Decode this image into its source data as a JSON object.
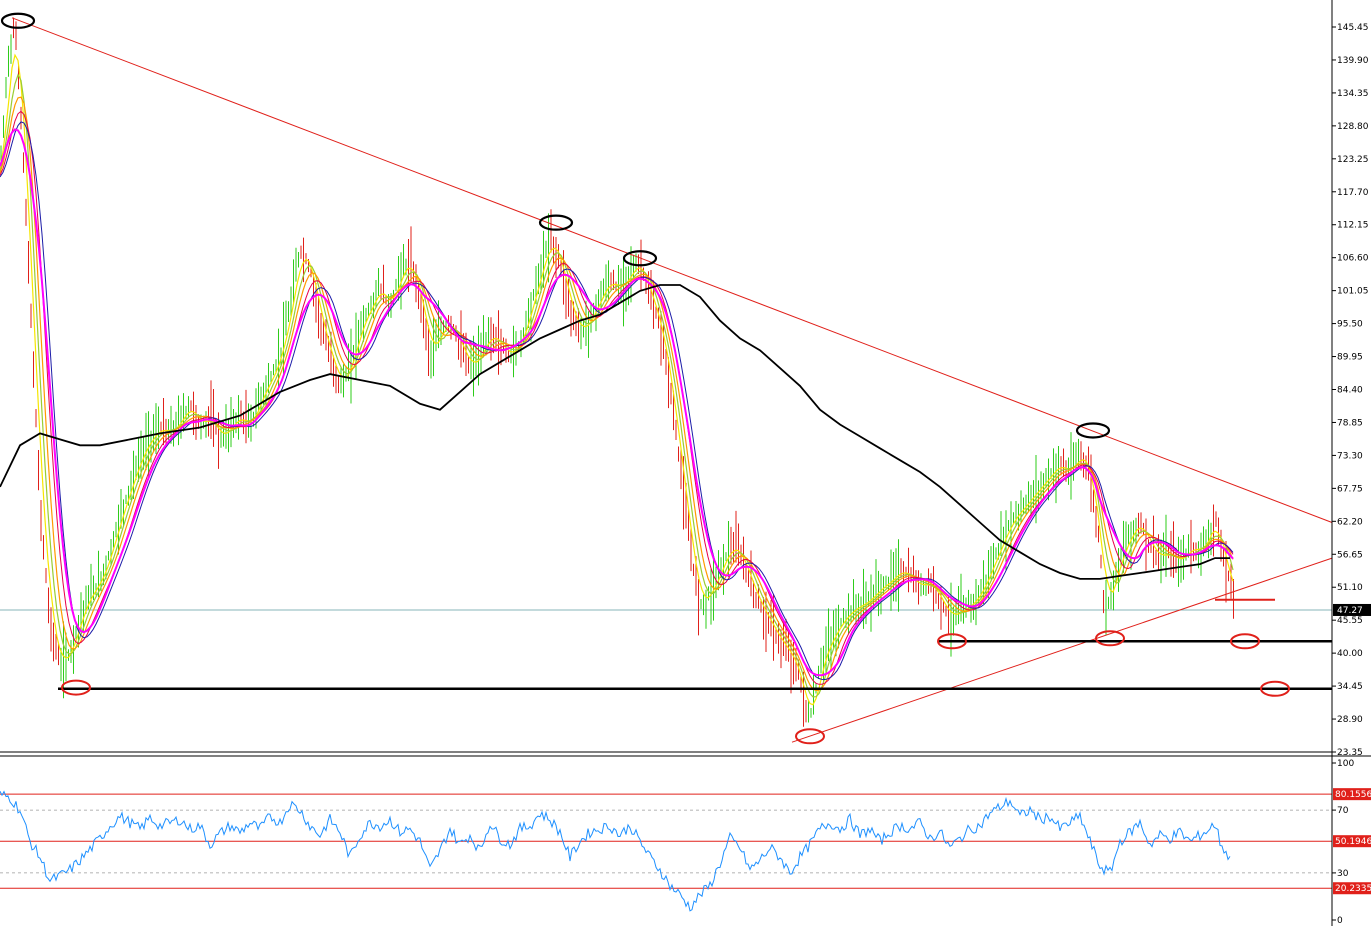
{
  "chart_data": [
    {
      "type": "candlestick",
      "panel": "price",
      "y_ticks": [
        "145.45",
        "139.90",
        "134.35",
        "128.80",
        "123.25",
        "117.70",
        "112.15",
        "106.60",
        "101.05",
        "95.50",
        "89.95",
        "84.40",
        "78.85",
        "73.30",
        "67.75",
        "62.20",
        "56.65",
        "51.10",
        "45.55",
        "40.00",
        "34.45",
        "28.90",
        "23.35"
      ],
      "ylim": [
        23.35,
        148
      ],
      "current_price": "47.27",
      "price_path": [
        [
          0,
          120
        ],
        [
          8,
          140
        ],
        [
          15,
          146
        ],
        [
          22,
          128
        ],
        [
          30,
          100
        ],
        [
          40,
          65
        ],
        [
          50,
          45
        ],
        [
          60,
          38
        ],
        [
          70,
          40
        ],
        [
          80,
          46
        ],
        [
          90,
          50
        ],
        [
          100,
          52
        ],
        [
          110,
          57
        ],
        [
          120,
          63
        ],
        [
          130,
          68
        ],
        [
          140,
          73
        ],
        [
          150,
          76
        ],
        [
          160,
          78
        ],
        [
          170,
          77
        ],
        [
          180,
          79
        ],
        [
          190,
          82
        ],
        [
          200,
          78
        ],
        [
          210,
          80
        ],
        [
          220,
          76
        ],
        [
          230,
          78
        ],
        [
          240,
          80
        ],
        [
          250,
          78
        ],
        [
          260,
          83
        ],
        [
          270,
          86
        ],
        [
          280,
          90
        ],
        [
          290,
          98
        ],
        [
          300,
          108
        ],
        [
          310,
          105
        ],
        [
          320,
          96
        ],
        [
          330,
          90
        ],
        [
          340,
          85
        ],
        [
          350,
          88
        ],
        [
          360,
          95
        ],
        [
          370,
          98
        ],
        [
          380,
          102
        ],
        [
          390,
          98
        ],
        [
          400,
          104
        ],
        [
          410,
          106
        ],
        [
          420,
          100
        ],
        [
          430,
          90
        ],
        [
          440,
          94
        ],
        [
          450,
          96
        ],
        [
          460,
          92
        ],
        [
          470,
          88
        ],
        [
          480,
          90
        ],
        [
          490,
          94
        ],
        [
          500,
          92
        ],
        [
          510,
          90
        ],
        [
          520,
          92
        ],
        [
          530,
          98
        ],
        [
          540,
          104
        ],
        [
          550,
          110
        ],
        [
          560,
          106
        ],
        [
          570,
          98
        ],
        [
          580,
          94
        ],
        [
          590,
          96
        ],
        [
          600,
          100
        ],
        [
          610,
          103
        ],
        [
          620,
          101
        ],
        [
          630,
          104
        ],
        [
          640,
          106
        ],
        [
          650,
          100
        ],
        [
          660,
          95
        ],
        [
          670,
          85
        ],
        [
          680,
          72
        ],
        [
          690,
          58
        ],
        [
          700,
          48
        ],
        [
          710,
          50
        ],
        [
          720,
          54
        ],
        [
          730,
          58
        ],
        [
          740,
          57
        ],
        [
          750,
          52
        ],
        [
          760,
          48
        ],
        [
          770,
          45
        ],
        [
          780,
          42
        ],
        [
          790,
          40
        ],
        [
          800,
          36
        ],
        [
          805,
          31
        ],
        [
          810,
          29
        ],
        [
          815,
          33
        ],
        [
          820,
          38
        ],
        [
          830,
          42
        ],
        [
          840,
          45
        ],
        [
          850,
          47
        ],
        [
          860,
          48
        ],
        [
          870,
          49
        ],
        [
          880,
          51
        ],
        [
          890,
          52
        ],
        [
          900,
          54
        ],
        [
          910,
          53
        ],
        [
          920,
          51
        ],
        [
          930,
          52
        ],
        [
          940,
          49
        ],
        [
          950,
          46
        ],
        [
          960,
          47
        ],
        [
          970,
          48
        ],
        [
          980,
          50
        ],
        [
          990,
          54
        ],
        [
          1000,
          58
        ],
        [
          1010,
          62
        ],
        [
          1020,
          64
        ],
        [
          1030,
          66
        ],
        [
          1040,
          68
        ],
        [
          1050,
          70
        ],
        [
          1060,
          72
        ],
        [
          1070,
          70
        ],
        [
          1080,
          74
        ],
        [
          1090,
          70
        ],
        [
          1100,
          58
        ],
        [
          1105,
          46
        ],
        [
          1110,
          50
        ],
        [
          1120,
          56
        ],
        [
          1130,
          60
        ],
        [
          1140,
          62
        ],
        [
          1150,
          58
        ],
        [
          1160,
          56
        ],
        [
          1170,
          57
        ],
        [
          1180,
          55
        ],
        [
          1190,
          58
        ],
        [
          1200,
          57
        ],
        [
          1210,
          60
        ],
        [
          1215,
          63
        ],
        [
          1220,
          58
        ],
        [
          1230,
          52
        ],
        [
          1235,
          49
        ]
      ],
      "ma_black_path": [
        [
          0,
          68
        ],
        [
          20,
          75
        ],
        [
          40,
          77
        ],
        [
          60,
          76
        ],
        [
          80,
          75
        ],
        [
          100,
          75
        ],
        [
          130,
          76
        ],
        [
          160,
          77
        ],
        [
          200,
          78
        ],
        [
          240,
          80
        ],
        [
          280,
          84
        ],
        [
          310,
          86
        ],
        [
          330,
          87
        ],
        [
          360,
          86
        ],
        [
          390,
          85
        ],
        [
          420,
          82
        ],
        [
          440,
          81
        ],
        [
          460,
          84
        ],
        [
          480,
          87
        ],
        [
          500,
          89
        ],
        [
          520,
          91
        ],
        [
          540,
          93
        ],
        [
          560,
          94.5
        ],
        [
          580,
          96
        ],
        [
          600,
          97
        ],
        [
          620,
          99
        ],
        [
          640,
          101
        ],
        [
          660,
          102
        ],
        [
          680,
          102
        ],
        [
          700,
          100
        ],
        [
          720,
          96
        ],
        [
          740,
          93
        ],
        [
          760,
          91
        ],
        [
          780,
          88
        ],
        [
          800,
          85
        ],
        [
          820,
          81
        ],
        [
          840,
          78.5
        ],
        [
          860,
          76.5
        ],
        [
          880,
          74.5
        ],
        [
          900,
          72.5
        ],
        [
          920,
          70.5
        ],
        [
          940,
          68
        ],
        [
          960,
          65
        ],
        [
          980,
          62
        ],
        [
          1000,
          59
        ],
        [
          1020,
          57
        ],
        [
          1040,
          55
        ],
        [
          1060,
          53.5
        ],
        [
          1080,
          52.5
        ],
        [
          1100,
          52.5
        ],
        [
          1120,
          53
        ],
        [
          1140,
          53.5
        ],
        [
          1160,
          54
        ],
        [
          1180,
          54.5
        ],
        [
          1200,
          55
        ],
        [
          1215,
          56
        ],
        [
          1230,
          56
        ]
      ],
      "trendlines": [
        {
          "name": "resistance",
          "from": [
            12,
            147
          ],
          "to": [
            1332,
            62
          ]
        },
        {
          "name": "support",
          "from": [
            792,
            25
          ],
          "to": [
            1332,
            56
          ]
        }
      ],
      "horizontal_levels": [
        {
          "value": 34.0,
          "from_x": 58,
          "to_x": 1332
        },
        {
          "value": 42.0,
          "from_x": 938,
          "to_x": 1332
        },
        {
          "value": 49.0,
          "from_x": 1215,
          "to_x": 1275
        }
      ],
      "marked_highs_black": [
        [
          18,
          146.5
        ],
        [
          556,
          112.5
        ],
        [
          640,
          106.5
        ],
        [
          1093,
          77.5
        ]
      ],
      "marked_lows_red": [
        [
          76,
          34.2
        ],
        [
          810,
          26
        ],
        [
          952,
          42
        ],
        [
          1110,
          42.5
        ],
        [
          1245,
          42
        ],
        [
          1275,
          34
        ]
      ]
    },
    {
      "type": "line",
      "panel": "rsi",
      "y_ticks": [
        "100",
        "70",
        "30",
        "0"
      ],
      "levels": [
        "80.1556",
        "50.1946",
        "20.2335"
      ],
      "ylim": [
        0,
        100
      ],
      "rsi_path": [
        [
          0,
          80
        ],
        [
          10,
          78
        ],
        [
          20,
          70
        ],
        [
          30,
          50
        ],
        [
          40,
          40
        ],
        [
          50,
          25
        ],
        [
          60,
          28
        ],
        [
          70,
          32
        ],
        [
          80,
          38
        ],
        [
          90,
          45
        ],
        [
          100,
          52
        ],
        [
          110,
          60
        ],
        [
          120,
          66
        ],
        [
          130,
          62
        ],
        [
          140,
          58
        ],
        [
          150,
          65
        ],
        [
          160,
          60
        ],
        [
          170,
          62
        ],
        [
          180,
          64
        ],
        [
          190,
          58
        ],
        [
          200,
          60
        ],
        [
          210,
          48
        ],
        [
          220,
          55
        ],
        [
          230,
          60
        ],
        [
          240,
          56
        ],
        [
          250,
          62
        ],
        [
          260,
          58
        ],
        [
          270,
          66
        ],
        [
          280,
          62
        ],
        [
          290,
          74
        ],
        [
          300,
          70
        ],
        [
          310,
          60
        ],
        [
          320,
          54
        ],
        [
          330,
          64
        ],
        [
          340,
          56
        ],
        [
          350,
          40
        ],
        [
          360,
          54
        ],
        [
          370,
          62
        ],
        [
          380,
          60
        ],
        [
          390,
          64
        ],
        [
          400,
          56
        ],
        [
          410,
          58
        ],
        [
          420,
          50
        ],
        [
          430,
          32
        ],
        [
          440,
          44
        ],
        [
          450,
          58
        ],
        [
          460,
          48
        ],
        [
          470,
          54
        ],
        [
          480,
          44
        ],
        [
          490,
          62
        ],
        [
          500,
          52
        ],
        [
          510,
          48
        ],
        [
          520,
          58
        ],
        [
          530,
          60
        ],
        [
          540,
          68
        ],
        [
          550,
          64
        ],
        [
          560,
          56
        ],
        [
          570,
          40
        ],
        [
          580,
          50
        ],
        [
          590,
          56
        ],
        [
          600,
          58
        ],
        [
          610,
          60
        ],
        [
          620,
          54
        ],
        [
          630,
          60
        ],
        [
          640,
          50
        ],
        [
          650,
          40
        ],
        [
          660,
          32
        ],
        [
          670,
          22
        ],
        [
          680,
          16
        ],
        [
          690,
          8
        ],
        [
          700,
          16
        ],
        [
          710,
          22
        ],
        [
          720,
          36
        ],
        [
          730,
          52
        ],
        [
          740,
          46
        ],
        [
          750,
          32
        ],
        [
          760,
          38
        ],
        [
          770,
          46
        ],
        [
          780,
          40
        ],
        [
          790,
          30
        ],
        [
          800,
          40
        ],
        [
          810,
          48
        ],
        [
          820,
          58
        ],
        [
          830,
          62
        ],
        [
          840,
          58
        ],
        [
          850,
          64
        ],
        [
          860,
          54
        ],
        [
          870,
          58
        ],
        [
          880,
          50
        ],
        [
          890,
          56
        ],
        [
          900,
          60
        ],
        [
          910,
          58
        ],
        [
          920,
          62
        ],
        [
          930,
          52
        ],
        [
          940,
          56
        ],
        [
          950,
          46
        ],
        [
          960,
          52
        ],
        [
          970,
          58
        ],
        [
          980,
          60
        ],
        [
          990,
          68
        ],
        [
          1000,
          72
        ],
        [
          1010,
          76
        ],
        [
          1020,
          66
        ],
        [
          1030,
          70
        ],
        [
          1040,
          64
        ],
        [
          1050,
          66
        ],
        [
          1060,
          58
        ],
        [
          1070,
          62
        ],
        [
          1080,
          66
        ],
        [
          1090,
          50
        ],
        [
          1100,
          34
        ],
        [
          1110,
          30
        ],
        [
          1120,
          50
        ],
        [
          1130,
          56
        ],
        [
          1140,
          62
        ],
        [
          1150,
          48
        ],
        [
          1160,
          54
        ],
        [
          1170,
          52
        ],
        [
          1180,
          56
        ],
        [
          1190,
          50
        ],
        [
          1200,
          54
        ],
        [
          1210,
          58
        ],
        [
          1215,
          62
        ],
        [
          1220,
          50
        ],
        [
          1230,
          38
        ]
      ]
    }
  ]
}
